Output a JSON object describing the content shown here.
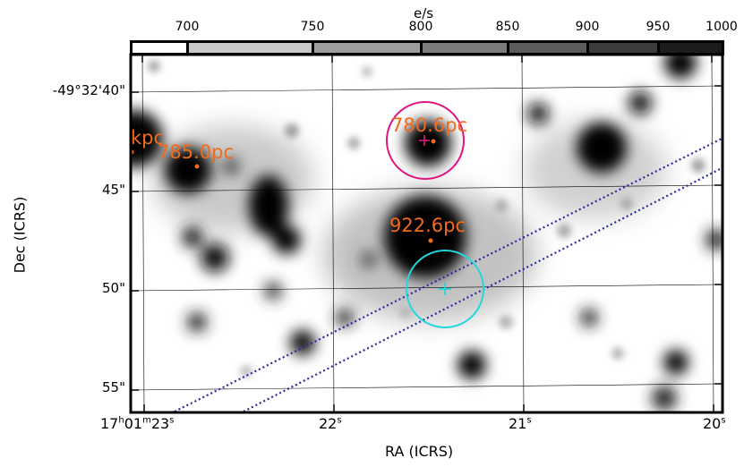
{
  "colorbar": {
    "unit_label": "e/s",
    "ticks": [
      "700",
      "750",
      "800",
      "850",
      "900",
      "950",
      "1000"
    ],
    "tick_values": [
      700,
      750,
      800,
      850,
      900,
      950,
      1000
    ],
    "range": [
      680,
      1000
    ]
  },
  "axes": {
    "xlabel": "RA (ICRS)",
    "ylabel": "Dec (ICRS)",
    "ra_ticks": [
      {
        "h": "17",
        "m": "01",
        "s": "23",
        "hsup": "h",
        "msup": "m",
        "ssup": "s"
      },
      {
        "s": "22",
        "ssup": "s"
      },
      {
        "s": "21",
        "ssup": "s"
      },
      {
        "s": "20",
        "ssup": "s"
      }
    ],
    "dec_ticks": [
      "-49°32'40\"",
      "45\"",
      "50\"",
      "55\""
    ]
  },
  "annotations": {
    "labels": [
      {
        "text": "kpc"
      },
      {
        "text": "785.0pc"
      },
      {
        "text": "780.6pc"
      },
      {
        "text": "922.6pc"
      }
    ]
  },
  "colors": {
    "label_orange": "#f26a1b",
    "magenta_circle": "#e0157e",
    "cyan_circle": "#21d7dc",
    "slit_blue": "#2a2a9e"
  }
}
